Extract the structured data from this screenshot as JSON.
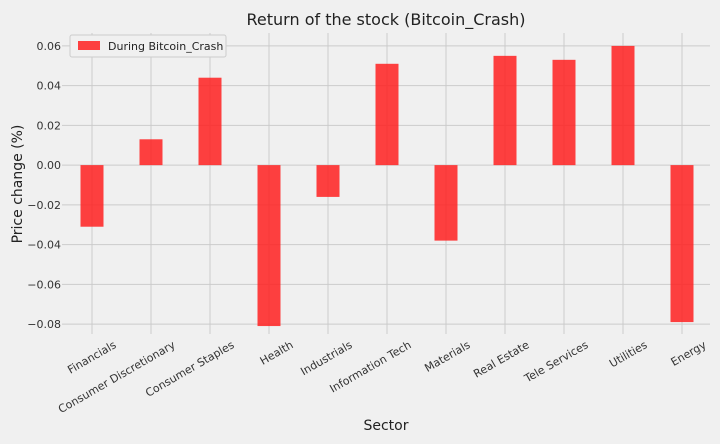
{
  "chart_data": {
    "type": "bar",
    "title": "Return of the stock (Bitcoin_Crash)",
    "xlabel": "Sector",
    "ylabel": "Price change (%)",
    "categories": [
      "Financials",
      "Consumer Discretionary",
      "Consumer Staples",
      "Health",
      "Industrials",
      "Information Tech",
      "Materials",
      "Real Estate",
      "Tele Services",
      "Utilities",
      "Energy"
    ],
    "series": [
      {
        "name": "During Bitcoin_Crash",
        "color": "#ff2020",
        "values": [
          -0.031,
          0.013,
          0.044,
          -0.081,
          -0.016,
          0.051,
          -0.038,
          0.055,
          0.053,
          0.06,
          -0.079
        ]
      }
    ],
    "ylim": [
      -0.085,
      0.0665
    ],
    "yticks": [
      "0.06",
      "0.04",
      "0.02",
      "0.00",
      "−0.02",
      "−0.04",
      "−0.06",
      "−0.08"
    ],
    "ytick_values": [
      0.06,
      0.04,
      0.02,
      0.0,
      -0.02,
      -0.04,
      -0.06,
      -0.08
    ],
    "grid": true,
    "legend_position": "top-left"
  }
}
